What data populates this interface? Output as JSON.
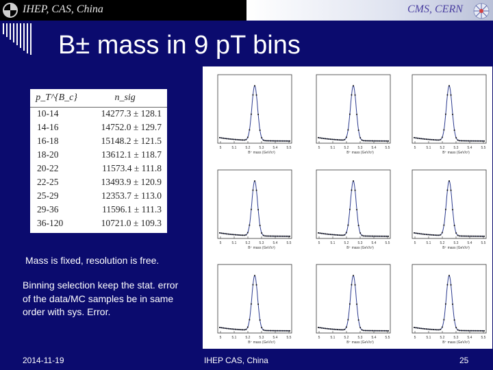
{
  "banner": {
    "left_text": "IHEP, CAS, China",
    "right_text": "CMS, CERN"
  },
  "slide": {
    "title": "B± mass in 9 pT bins"
  },
  "table": {
    "header": [
      "p_T^{B_c}",
      "n_sig"
    ],
    "rows": [
      {
        "bin": "10-14",
        "value": "14277.3 ± 128.1"
      },
      {
        "bin": "14-16",
        "value": "14752.0 ± 129.7"
      },
      {
        "bin": "16-18",
        "value": "15148.2 ± 121.5"
      },
      {
        "bin": "18-20",
        "value": "13612.1 ± 118.7"
      },
      {
        "bin": "20-22",
        "value": "11573.4 ± 111.8"
      },
      {
        "bin": "22-25",
        "value": "13493.9 ± 120.9"
      },
      {
        "bin": "25-29",
        "value": "12353.7 ± 113.0"
      },
      {
        "bin": "29-36",
        "value": "11596.1 ± 111.3"
      },
      {
        "bin": "36-120",
        "value": "10721.0 ± 109.3"
      }
    ]
  },
  "notes": {
    "line1": "Mass is fixed, resolution is free.",
    "line2": "Binning selection keep the stat. error of the data/MC samples be in same order with sys. Error."
  },
  "plots": {
    "xlabel": "B⁺ mass (GeV/c²)",
    "xticks": [
      "5",
      "5.1",
      "5.2",
      "5.3",
      "5.4",
      "5.5"
    ],
    "count": 9,
    "line_color": "#2b3a8f"
  },
  "footer": {
    "date": "2014-11-19",
    "center": "IHEP CAS, China",
    "page": "25"
  }
}
